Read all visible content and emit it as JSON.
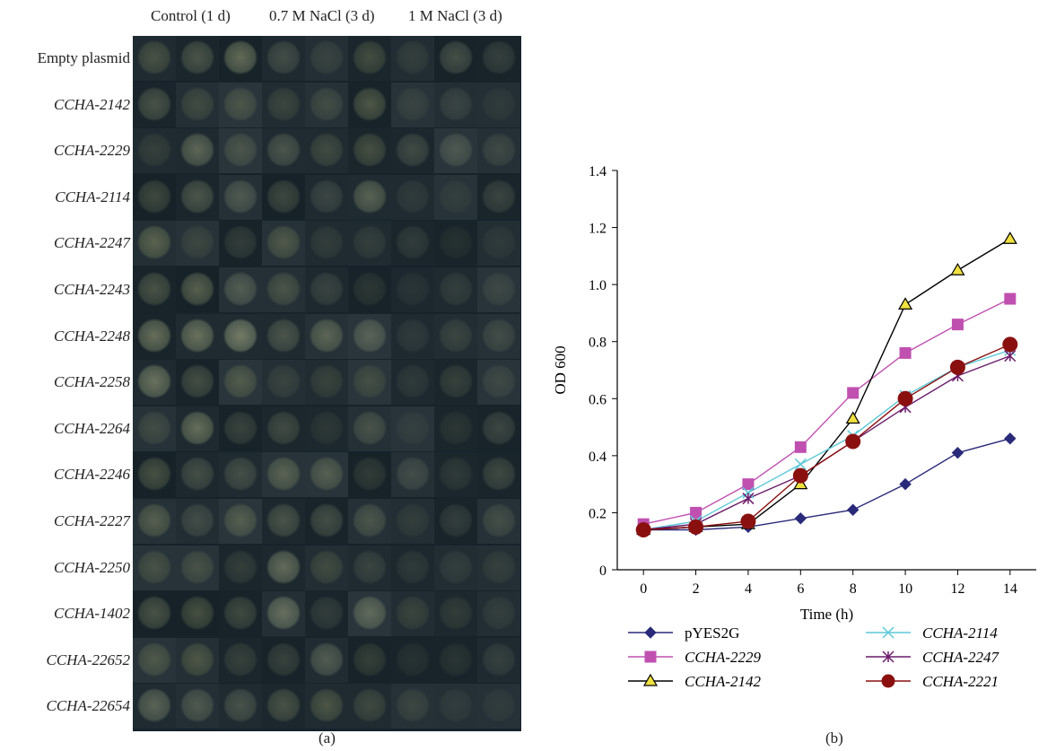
{
  "panel_a": {
    "column_headers": [
      "Control (1 d)",
      "0.7 M NaCl (3 d)",
      "1 M NaCl (3 d)"
    ],
    "row_labels": [
      "Empty plasmid",
      "CCHA-2142",
      "CCHA-2229",
      "CCHA-2114",
      "CCHA-2247",
      "CCHA-2243",
      "CCHA-2248",
      "CCHA-2258",
      "CCHA-2264",
      "CCHA-2246",
      "CCHA-2227",
      "CCHA-2250",
      "CCHA-1402",
      "CCHA-22652",
      "CCHA-22654"
    ],
    "label": "(a)"
  },
  "panel_b": {
    "label": "(b)"
  },
  "chart_data": {
    "type": "line",
    "title": "",
    "xlabel": "Time (h)",
    "ylabel": "OD 600",
    "x": [
      0,
      2,
      4,
      6,
      8,
      10,
      12,
      14
    ],
    "xlim": [
      -1,
      15
    ],
    "ylim": [
      0,
      1.4
    ],
    "xticks": [
      "0",
      "2",
      "4",
      "6",
      "8",
      "10",
      "12",
      "14"
    ],
    "yticks": [
      "0",
      "0.2",
      "0.4",
      "0.6",
      "0.8",
      "1.0",
      "1.2",
      "1.4"
    ],
    "grid": false,
    "legend_position": "bottom",
    "series": [
      {
        "name": "pYES2G",
        "values": [
          0.14,
          0.14,
          0.15,
          0.18,
          0.21,
          0.3,
          0.41,
          0.46
        ],
        "color": "#2a2a7a",
        "marker": "diamond"
      },
      {
        "name": "CCHA-2229",
        "values": [
          0.16,
          0.2,
          0.3,
          0.43,
          0.62,
          0.76,
          0.86,
          0.95
        ],
        "color": "#c050b0",
        "marker": "square"
      },
      {
        "name": "CCHA-2142",
        "values": [
          0.14,
          0.15,
          0.16,
          0.3,
          0.53,
          0.93,
          1.05,
          1.16
        ],
        "color": "#000000",
        "marker": "triangle",
        "fill": "#f0e040"
      },
      {
        "name": "CCHA-2114",
        "values": [
          0.14,
          0.17,
          0.27,
          0.37,
          0.47,
          0.61,
          0.71,
          0.77
        ],
        "color": "#5cc8d8",
        "marker": "x"
      },
      {
        "name": "CCHA-2247",
        "values": [
          0.14,
          0.16,
          0.25,
          0.33,
          0.45,
          0.57,
          0.68,
          0.75
        ],
        "color": "#6a1a6a",
        "marker": "star"
      },
      {
        "name": "CCHA-2221",
        "values": [
          0.14,
          0.15,
          0.17,
          0.33,
          0.45,
          0.6,
          0.71,
          0.79
        ],
        "color": "#8a1010",
        "marker": "circle"
      }
    ]
  }
}
